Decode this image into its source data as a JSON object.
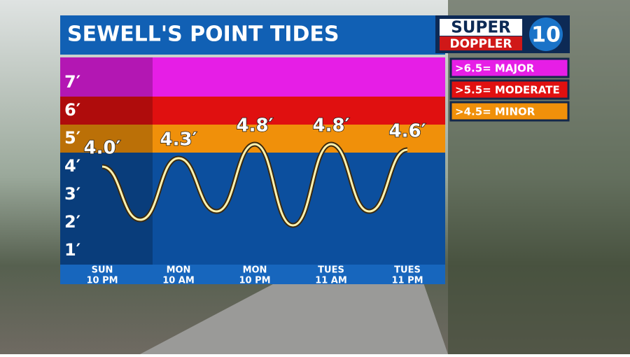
{
  "chart_data": {
    "type": "line",
    "title": "SEWELL'S POINT TIDES",
    "logo": {
      "top": "SUPER",
      "bottom": "DOPPLER",
      "number": "10"
    },
    "categories": [
      [
        "SUN",
        "10 PM"
      ],
      null,
      [
        "MON",
        "10 AM"
      ],
      null,
      [
        "MON",
        "10 PM"
      ],
      null,
      [
        "TUES",
        "11 AM"
      ],
      null,
      [
        "TUES",
        "11 PM"
      ]
    ],
    "series": [
      {
        "color": "#fff3b0",
        "values": [
          4.0,
          2.1,
          4.3,
          2.4,
          4.8,
          1.9,
          4.8,
          2.4,
          4.6
        ],
        "value_labels": [
          "4.0′",
          null,
          "4.3′",
          null,
          "4.8′",
          null,
          "4.8′",
          null,
          "4.6′"
        ]
      }
    ],
    "ylim": [
      0.5,
      7.9
    ],
    "yticks": [
      {
        "value": 1,
        "label": "1′"
      },
      {
        "value": 2,
        "label": "2′"
      },
      {
        "value": 3,
        "label": "3′"
      },
      {
        "value": 4,
        "label": "4′"
      },
      {
        "value": 5,
        "label": "5′"
      },
      {
        "value": 6,
        "label": "6′"
      },
      {
        "value": 7,
        "label": "7′"
      }
    ],
    "thresholds": [
      {
        "value": 6.5,
        "label": ">6.5= MAJOR",
        "color": "#e61ee6"
      },
      {
        "value": 5.5,
        "label": ">5.5= MODERATE",
        "color": "#e01010"
      },
      {
        "value": 4.5,
        "label": ">4.5= MINOR",
        "color": "#f0900a"
      }
    ]
  }
}
